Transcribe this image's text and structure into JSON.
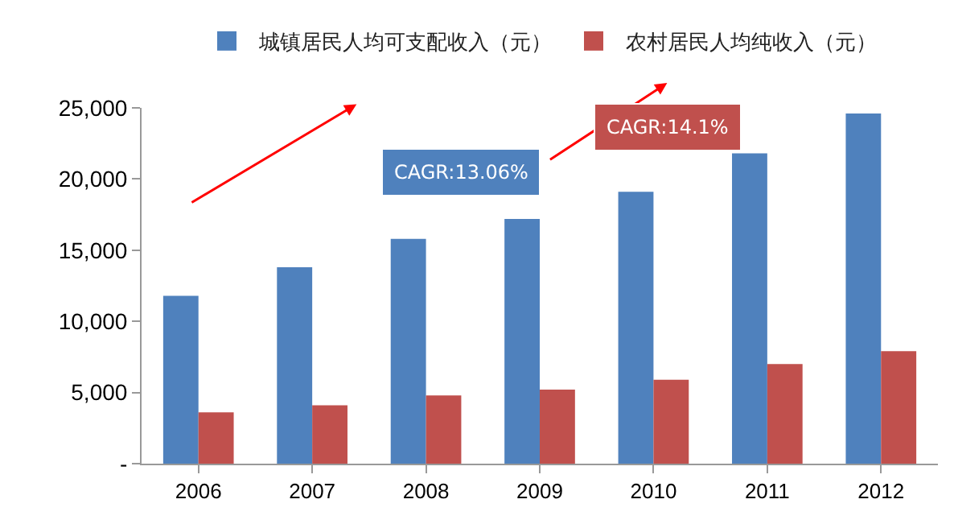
{
  "chart_data": {
    "type": "bar",
    "categories": [
      "2006",
      "2007",
      "2008",
      "2009",
      "2010",
      "2011",
      "2012"
    ],
    "series": [
      {
        "name": "城镇居民人均可支配收入（元）",
        "color": "#4f81bd",
        "values": [
          11800,
          13800,
          15800,
          17200,
          19100,
          21800,
          24600
        ]
      },
      {
        "name": "农村居民人均纯收入（元）",
        "color": "#c0504d",
        "values": [
          3600,
          4100,
          4800,
          5200,
          5900,
          7000,
          7900
        ]
      }
    ],
    "ylim": [
      0,
      25000
    ],
    "yticks": [
      {
        "value": 0,
        "label": "-"
      },
      {
        "value": 5000,
        "label": "5,000"
      },
      {
        "value": 10000,
        "label": "10,000"
      },
      {
        "value": 15000,
        "label": "15,000"
      },
      {
        "value": 20000,
        "label": "20,000"
      },
      {
        "value": 25000,
        "label": "25,000"
      }
    ],
    "grid": false,
    "legend": "top",
    "annotations": [
      "CAGR:13.06%",
      "CAGR:14.1%"
    ]
  }
}
